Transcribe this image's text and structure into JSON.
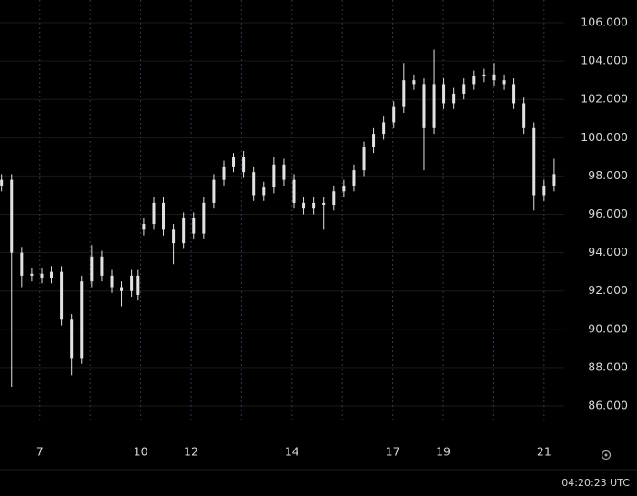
{
  "chart_data": {
    "type": "candlestick",
    "color": "#e2e2e2",
    "x": [
      -0.76,
      -0.56,
      -0.36,
      -0.16,
      0.04,
      0.23,
      0.43,
      0.63,
      0.83,
      1.03,
      1.23,
      1.43,
      1.62,
      1.82,
      1.95,
      2.06,
      2.26,
      2.45,
      2.65,
      2.85,
      3.05,
      3.25,
      3.45,
      3.65,
      3.84,
      4.04,
      4.24,
      4.44,
      4.64,
      4.84,
      5.04,
      5.23,
      5.43,
      5.63,
      5.83,
      6.03,
      6.23,
      6.43,
      6.62,
      6.82,
      7.02,
      7.22,
      7.42,
      7.62,
      7.82,
      8.01,
      8.21,
      8.41,
      8.61,
      8.81,
      9.01,
      9.21,
      9.4,
      9.6,
      9.8,
      10.0,
      10.2
    ],
    "open": [
      97.5,
      97.8,
      94,
      92.8,
      92.9,
      92.7,
      93.0,
      90.5,
      88.5,
      92.5,
      93.8,
      92.8,
      92.2,
      92.0,
      92.8,
      95.2,
      95.5,
      96.6,
      95.2,
      94.5,
      95.8,
      95.0,
      96.6,
      97.8,
      98.5,
      99.0,
      98.2,
      97.0,
      97.4,
      98.6,
      97.8,
      96.6,
      96.3,
      96.6,
      96.5,
      97.2,
      97.5,
      98.3,
      99.5,
      100.2,
      100.8,
      101.6,
      103.0,
      102.8,
      100.5,
      102.8,
      101.8,
      102.3,
      102.8,
      103.2,
      103.3,
      103.0,
      102.8,
      101.8,
      100.5,
      97.0,
      97.5
    ],
    "high": [
      98.1,
      98.1,
      94.3,
      93.2,
      93.2,
      93.3,
      93.3,
      90.8,
      92.8,
      94.4,
      94.1,
      93.1,
      92.5,
      93.1,
      93.1,
      95.8,
      96.9,
      96.9,
      95.5,
      96.1,
      96.1,
      96.9,
      98.1,
      98.8,
      99.2,
      99.3,
      98.5,
      97.7,
      99.0,
      98.9,
      98.1,
      96.9,
      96.9,
      96.9,
      97.5,
      97.8,
      98.6,
      99.8,
      100.5,
      101.1,
      101.9,
      103.9,
      103.3,
      103.1,
      104.6,
      103.1,
      102.6,
      103.1,
      103.5,
      103.6,
      103.9,
      103.3,
      103.1,
      102.1,
      100.8,
      97.8,
      98.9
    ],
    "low": [
      97.2,
      87.0,
      92.2,
      92.5,
      92.4,
      92.4,
      90.2,
      87.6,
      88.2,
      92.2,
      92.5,
      91.9,
      91.2,
      91.7,
      91.5,
      94.9,
      95.2,
      94.9,
      93.4,
      94.2,
      94.7,
      94.7,
      96.3,
      97.5,
      98.2,
      97.9,
      96.7,
      96.7,
      97.1,
      97.5,
      96.3,
      96.0,
      96.0,
      95.2,
      96.2,
      96.9,
      97.2,
      98.0,
      99.2,
      99.9,
      100.5,
      101.3,
      102.5,
      98.3,
      100.2,
      101.5,
      101.5,
      102.0,
      102.5,
      102.9,
      102.7,
      102.5,
      101.5,
      100.2,
      96.2,
      96.7,
      97.2
    ],
    "close": [
      97.8,
      94,
      92.8,
      92.9,
      92.7,
      93.0,
      90.5,
      88.5,
      92.5,
      93.8,
      92.8,
      92.2,
      92.0,
      92.8,
      91.8,
      95.5,
      96.6,
      95.2,
      94.5,
      95.8,
      95.0,
      96.6,
      97.8,
      98.5,
      99.0,
      98.2,
      97.0,
      97.4,
      98.6,
      97.8,
      96.6,
      96.3,
      96.6,
      96.5,
      97.2,
      97.5,
      98.3,
      99.5,
      100.2,
      100.8,
      101.6,
      103.0,
      102.8,
      100.5,
      102.8,
      101.8,
      102.3,
      102.8,
      103.2,
      103.3,
      103.0,
      102.8,
      101.8,
      100.5,
      97.0,
      97.5,
      98.1
    ],
    "xlim": [
      -0.79,
      10.4
    ],
    "xticks": [
      {
        "value": 0,
        "label": "7"
      },
      {
        "value": 2,
        "label": "10"
      },
      {
        "value": 3,
        "label": "12"
      },
      {
        "value": 5,
        "label": "14"
      },
      {
        "value": 7,
        "label": "17"
      },
      {
        "value": 8,
        "label": "19"
      },
      {
        "value": 10,
        "label": "21"
      }
    ],
    "xgrid": [
      0,
      1,
      2,
      3,
      4,
      5,
      6,
      7,
      8,
      9,
      10
    ],
    "ylim": [
      85.24,
      107.19
    ],
    "yticks": [
      {
        "value": 86,
        "label": "86.000"
      },
      {
        "value": 88,
        "label": "88.000"
      },
      {
        "value": 90,
        "label": "90.000"
      },
      {
        "value": 92,
        "label": "92.000"
      },
      {
        "value": 94,
        "label": "94.000"
      },
      {
        "value": 96,
        "label": "96.000"
      },
      {
        "value": 98,
        "label": "98.000"
      },
      {
        "value": 100,
        "label": "100.000"
      },
      {
        "value": 102,
        "label": "102.000"
      },
      {
        "value": 104,
        "label": "104.000"
      },
      {
        "value": 106,
        "label": "106.000"
      }
    ],
    "grid": true,
    "clock": "04:20:23 UTC"
  }
}
